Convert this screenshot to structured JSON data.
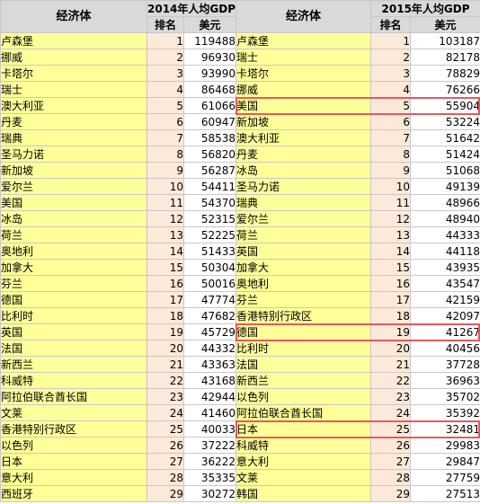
{
  "headers": {
    "economy": "经济体",
    "year_2014": "2014年人均GDP",
    "year_2015": "2015年人均GDP",
    "rank": "排名",
    "usd": "美元"
  },
  "colors": {
    "country_bg": "#ffff99",
    "rank_bg": "#fde9d9",
    "header_bg": "#d9d9d9",
    "highlight_border": "#e8585c"
  },
  "rows": [
    {
      "c14": "卢森堡",
      "r14": "1",
      "v14": "119488",
      "c15": "卢森堡",
      "r15": "1",
      "v15": "103187"
    },
    {
      "c14": "挪威",
      "r14": "2",
      "v14": "96930",
      "c15": "瑞士",
      "r15": "2",
      "v15": "82178"
    },
    {
      "c14": "卡塔尔",
      "r14": "3",
      "v14": "93990",
      "c15": "卡塔尔",
      "r15": "3",
      "v15": "78829"
    },
    {
      "c14": "瑞士",
      "r14": "4",
      "v14": "86468",
      "c15": "挪威",
      "r15": "4",
      "v15": "76266"
    },
    {
      "c14": "澳大利亚",
      "r14": "5",
      "v14": "61066",
      "c15": "美国",
      "r15": "5",
      "v15": "55904"
    },
    {
      "c14": "丹麦",
      "r14": "6",
      "v14": "60947",
      "c15": "新加坡",
      "r15": "6",
      "v15": "53224"
    },
    {
      "c14": "瑞典",
      "r14": "7",
      "v14": "58538",
      "c15": "澳大利亚",
      "r15": "7",
      "v15": "51642"
    },
    {
      "c14": "圣马力诺",
      "r14": "8",
      "v14": "56820",
      "c15": "丹麦",
      "r15": "8",
      "v15": "51424"
    },
    {
      "c14": "新加坡",
      "r14": "9",
      "v14": "56287",
      "c15": "冰岛",
      "r15": "9",
      "v15": "51068"
    },
    {
      "c14": "爱尔兰",
      "r14": "10",
      "v14": "54411",
      "c15": "圣马力诺",
      "r15": "10",
      "v15": "49139"
    },
    {
      "c14": "美国",
      "r14": "11",
      "v14": "54370",
      "c15": "瑞典",
      "r15": "11",
      "v15": "48966"
    },
    {
      "c14": "冰岛",
      "r14": "12",
      "v14": "52315",
      "c15": "爱尔兰",
      "r15": "12",
      "v15": "48940"
    },
    {
      "c14": "荷兰",
      "r14": "13",
      "v14": "52225",
      "c15": "荷兰",
      "r15": "13",
      "v15": "44333"
    },
    {
      "c14": "奥地利",
      "r14": "14",
      "v14": "51433",
      "c15": "英国",
      "r15": "14",
      "v15": "44118"
    },
    {
      "c14": "加拿大",
      "r14": "15",
      "v14": "50304",
      "c15": "加拿大",
      "r15": "15",
      "v15": "43935"
    },
    {
      "c14": "芬兰",
      "r14": "16",
      "v14": "50016",
      "c15": "奥地利",
      "r15": "16",
      "v15": "43547"
    },
    {
      "c14": "德国",
      "r14": "17",
      "v14": "47774",
      "c15": "芬兰",
      "r15": "17",
      "v15": "42159"
    },
    {
      "c14": "比利时",
      "r14": "18",
      "v14": "47682",
      "c15": "香港特别行政区",
      "r15": "18",
      "v15": "42097"
    },
    {
      "c14": "英国",
      "r14": "19",
      "v14": "45729",
      "c15": "德国",
      "r15": "19",
      "v15": "41267"
    },
    {
      "c14": "法国",
      "r14": "20",
      "v14": "44332",
      "c15": "比利时",
      "r15": "20",
      "v15": "40456"
    },
    {
      "c14": "新西兰",
      "r14": "21",
      "v14": "43363",
      "c15": "法国",
      "r15": "21",
      "v15": "37728"
    },
    {
      "c14": "科威特",
      "r14": "22",
      "v14": "43168",
      "c15": "新西兰",
      "r15": "22",
      "v15": "36963"
    },
    {
      "c14": "阿拉伯联合酋长国",
      "r14": "23",
      "v14": "42944",
      "c15": "以色列",
      "r15": "23",
      "v15": "35702"
    },
    {
      "c14": "文莱",
      "r14": "24",
      "v14": "41460",
      "c15": "阿拉伯联合酋长国",
      "r15": "24",
      "v15": "35392"
    },
    {
      "c14": "香港特别行政区",
      "r14": "25",
      "v14": "40033",
      "c15": "日本",
      "r15": "25",
      "v15": "32481"
    },
    {
      "c14": "以色列",
      "r14": "26",
      "v14": "37222",
      "c15": "科威特",
      "r15": "26",
      "v15": "29983"
    },
    {
      "c14": "日本",
      "r14": "27",
      "v14": "36222",
      "c15": "意大利",
      "r15": "27",
      "v15": "29847"
    },
    {
      "c14": "意大利",
      "r14": "28",
      "v14": "35335",
      "c15": "文莱",
      "r15": "28",
      "v15": "27759"
    },
    {
      "c14": "西班牙",
      "r14": "29",
      "v14": "30272",
      "c15": "韩国",
      "r15": "29",
      "v15": "27513"
    }
  ],
  "highlighted_2015_ranks": [
    5,
    19,
    25
  ]
}
